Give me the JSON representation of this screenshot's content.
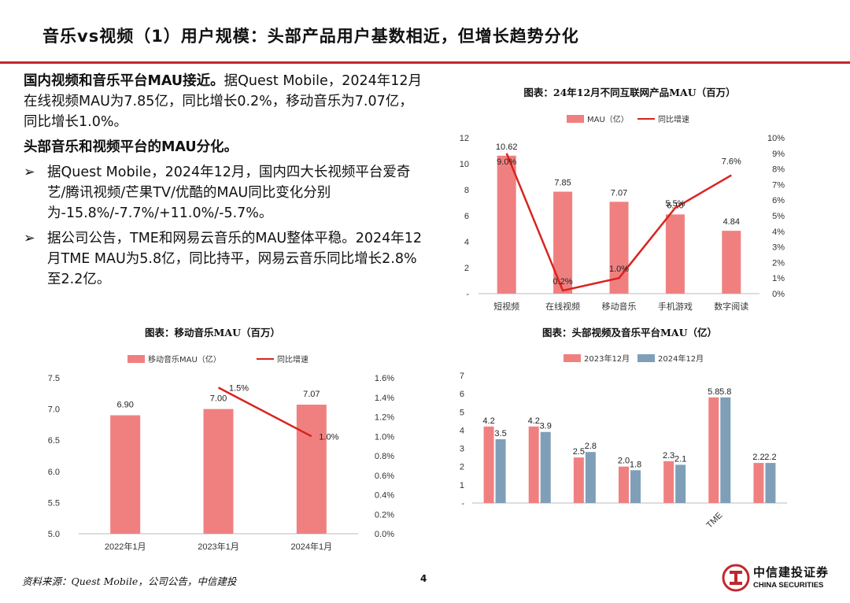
{
  "header": {
    "title": "音乐vs视频（1）用户规模：头部产品用户基数相近，但增长趋势分化"
  },
  "body": {
    "p1_bold": "国内视频和音乐平台MAU接近。",
    "p1_rest": "据Quest Mobile，2024年12月在线视频MAU为7.85亿，同比增长0.2%，移动音乐为7.07亿，同比增长1.0%。",
    "p2_bold": "头部音乐和视频平台的MAU分化。",
    "bullets": [
      "据Quest Mobile，2024年12月，国内四大长视频平台爱奇艺/腾讯视频/芒果TV/优酷的MAU同比变化分别为-15.8%/-7.7%/+11.0%/-5.7%。",
      "据公司公告，TME和网易云音乐的MAU整体平稳。2024年12月TME MAU为5.8亿，同比持平，网易云音乐同比增长2.8%至2.2亿。"
    ],
    "bullet_icon": "arrow-bullet-icon"
  },
  "chart_data": [
    {
      "type": "bar",
      "title": "图表：24年12月不同互联网产品MAU（百万）",
      "categories": [
        "短视频",
        "在线视频",
        "移动音乐",
        "手机游戏",
        "数字阅读"
      ],
      "series": [
        {
          "name": "MAU（亿）",
          "type": "bar",
          "axis": "left",
          "values": [
            10.62,
            7.85,
            7.07,
            6.1,
            4.84
          ],
          "labels": [
            "10.62",
            "7.85",
            "7.07",
            "6.10",
            "4.84"
          ],
          "color": "#f08080"
        },
        {
          "name": "同比增速",
          "type": "line",
          "axis": "right",
          "values": [
            9.0,
            0.2,
            1.0,
            5.5,
            7.6
          ],
          "labels": [
            "9.0%",
            "0.2%",
            "1.0%",
            "5.5%",
            "7.6%"
          ],
          "color": "#d9241f"
        }
      ],
      "y_left": {
        "min": 0,
        "max": 12,
        "ticks": [
          "-",
          "2",
          "4",
          "6",
          "8",
          "10",
          "12"
        ]
      },
      "y_right": {
        "min": 0,
        "max": 10,
        "ticks": [
          "0%",
          "1%",
          "2%",
          "3%",
          "4%",
          "5%",
          "6%",
          "7%",
          "8%",
          "9%",
          "10%"
        ]
      },
      "legend": "top-center"
    },
    {
      "type": "bar",
      "title": "图表：移动音乐MAU（百万）",
      "categories": [
        "2022年1月",
        "2023年1月",
        "2024年1月"
      ],
      "series": [
        {
          "name": "移动音乐MAU（亿）",
          "type": "bar",
          "axis": "left",
          "values": [
            6.9,
            7.0,
            7.07
          ],
          "labels": [
            "6.90",
            "7.00",
            "7.07"
          ],
          "color": "#f08080"
        },
        {
          "name": "同比增速",
          "type": "line",
          "axis": "right",
          "values": [
            null,
            1.5,
            1.0
          ],
          "labels": [
            "",
            "1.5%",
            "1.0%"
          ],
          "color": "#d9241f"
        }
      ],
      "y_left": {
        "min": 5.0,
        "max": 7.5,
        "ticks": [
          "5.0",
          "5.5",
          "6.0",
          "6.5",
          "7.0",
          "7.5"
        ]
      },
      "y_right": {
        "min": 0,
        "max": 1.6,
        "ticks": [
          "0.0%",
          "0.2%",
          "0.4%",
          "0.6%",
          "0.8%",
          "1.0%",
          "1.2%",
          "1.4%",
          "1.6%"
        ]
      },
      "legend": "top-center"
    },
    {
      "type": "bar",
      "title": "图表：头部视频及音乐平台MAU（亿）",
      "categories": [
        "",
        "",
        "",
        "",
        "",
        "TME",
        ""
      ],
      "series": [
        {
          "name": "2023年12月",
          "values": [
            4.2,
            4.2,
            2.5,
            2.0,
            2.3,
            5.8,
            2.2
          ],
          "labels": [
            "4.2",
            "4.2",
            "2.5",
            "2.0",
            "2.3",
            "5.8",
            "2.2"
          ],
          "color": "#f08080"
        },
        {
          "name": "2024年12月",
          "values": [
            3.5,
            3.9,
            2.8,
            1.8,
            2.1,
            5.8,
            2.2
          ],
          "labels": [
            "3.5",
            "3.9",
            "2.8",
            "1.8",
            "2.1",
            "5.8",
            "2.2"
          ],
          "color": "#7f9fb8"
        }
      ],
      "y_left": {
        "min": 0,
        "max": 7,
        "ticks": [
          "-",
          "1",
          "2",
          "3",
          "4",
          "5",
          "6",
          "7"
        ]
      },
      "legend": "top-center"
    }
  ],
  "footer": {
    "source": "资料来源：Quest Mobile，公司公告，中信建投",
    "page": "4",
    "logo_cn": "中信建投证券",
    "logo_en": "CHINA SECURITIES",
    "logo_icon": "citic-logo-icon"
  }
}
